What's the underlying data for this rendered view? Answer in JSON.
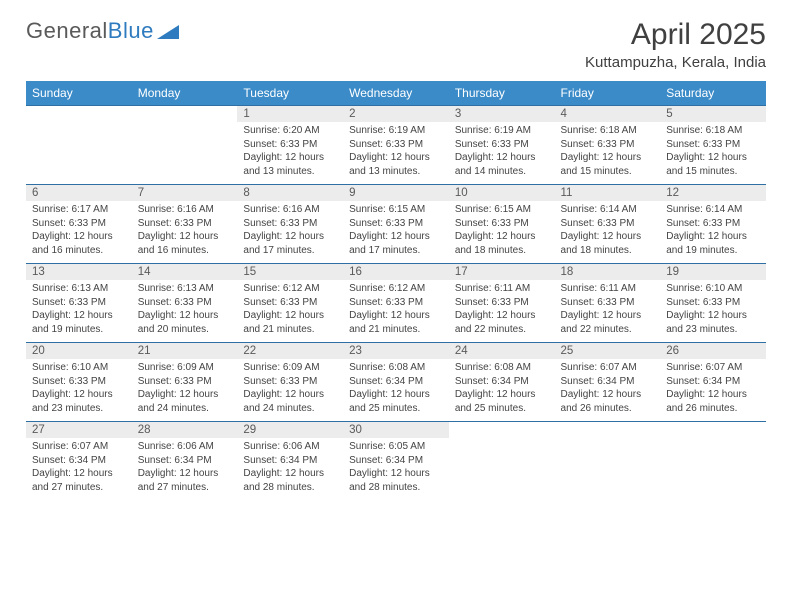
{
  "brand": {
    "part1": "General",
    "part2": "Blue"
  },
  "title": "April 2025",
  "location": "Kuttampuzha, Kerala, India",
  "colors": {
    "header_bg": "#3b8bc8",
    "header_text": "#ffffff",
    "daynum_bg": "#ececec",
    "rule": "#2f6fa3",
    "body_text": "#444444",
    "title_text": "#404040"
  },
  "dow": [
    "Sunday",
    "Monday",
    "Tuesday",
    "Wednesday",
    "Thursday",
    "Friday",
    "Saturday"
  ],
  "weeks": [
    [
      null,
      null,
      {
        "n": "1",
        "sr": "6:20 AM",
        "ss": "6:33 PM",
        "dl": "12 hours and 13 minutes."
      },
      {
        "n": "2",
        "sr": "6:19 AM",
        "ss": "6:33 PM",
        "dl": "12 hours and 13 minutes."
      },
      {
        "n": "3",
        "sr": "6:19 AM",
        "ss": "6:33 PM",
        "dl": "12 hours and 14 minutes."
      },
      {
        "n": "4",
        "sr": "6:18 AM",
        "ss": "6:33 PM",
        "dl": "12 hours and 15 minutes."
      },
      {
        "n": "5",
        "sr": "6:18 AM",
        "ss": "6:33 PM",
        "dl": "12 hours and 15 minutes."
      }
    ],
    [
      {
        "n": "6",
        "sr": "6:17 AM",
        "ss": "6:33 PM",
        "dl": "12 hours and 16 minutes."
      },
      {
        "n": "7",
        "sr": "6:16 AM",
        "ss": "6:33 PM",
        "dl": "12 hours and 16 minutes."
      },
      {
        "n": "8",
        "sr": "6:16 AM",
        "ss": "6:33 PM",
        "dl": "12 hours and 17 minutes."
      },
      {
        "n": "9",
        "sr": "6:15 AM",
        "ss": "6:33 PM",
        "dl": "12 hours and 17 minutes."
      },
      {
        "n": "10",
        "sr": "6:15 AM",
        "ss": "6:33 PM",
        "dl": "12 hours and 18 minutes."
      },
      {
        "n": "11",
        "sr": "6:14 AM",
        "ss": "6:33 PM",
        "dl": "12 hours and 18 minutes."
      },
      {
        "n": "12",
        "sr": "6:14 AM",
        "ss": "6:33 PM",
        "dl": "12 hours and 19 minutes."
      }
    ],
    [
      {
        "n": "13",
        "sr": "6:13 AM",
        "ss": "6:33 PM",
        "dl": "12 hours and 19 minutes."
      },
      {
        "n": "14",
        "sr": "6:13 AM",
        "ss": "6:33 PM",
        "dl": "12 hours and 20 minutes."
      },
      {
        "n": "15",
        "sr": "6:12 AM",
        "ss": "6:33 PM",
        "dl": "12 hours and 21 minutes."
      },
      {
        "n": "16",
        "sr": "6:12 AM",
        "ss": "6:33 PM",
        "dl": "12 hours and 21 minutes."
      },
      {
        "n": "17",
        "sr": "6:11 AM",
        "ss": "6:33 PM",
        "dl": "12 hours and 22 minutes."
      },
      {
        "n": "18",
        "sr": "6:11 AM",
        "ss": "6:33 PM",
        "dl": "12 hours and 22 minutes."
      },
      {
        "n": "19",
        "sr": "6:10 AM",
        "ss": "6:33 PM",
        "dl": "12 hours and 23 minutes."
      }
    ],
    [
      {
        "n": "20",
        "sr": "6:10 AM",
        "ss": "6:33 PM",
        "dl": "12 hours and 23 minutes."
      },
      {
        "n": "21",
        "sr": "6:09 AM",
        "ss": "6:33 PM",
        "dl": "12 hours and 24 minutes."
      },
      {
        "n": "22",
        "sr": "6:09 AM",
        "ss": "6:33 PM",
        "dl": "12 hours and 24 minutes."
      },
      {
        "n": "23",
        "sr": "6:08 AM",
        "ss": "6:34 PM",
        "dl": "12 hours and 25 minutes."
      },
      {
        "n": "24",
        "sr": "6:08 AM",
        "ss": "6:34 PM",
        "dl": "12 hours and 25 minutes."
      },
      {
        "n": "25",
        "sr": "6:07 AM",
        "ss": "6:34 PM",
        "dl": "12 hours and 26 minutes."
      },
      {
        "n": "26",
        "sr": "6:07 AM",
        "ss": "6:34 PM",
        "dl": "12 hours and 26 minutes."
      }
    ],
    [
      {
        "n": "27",
        "sr": "6:07 AM",
        "ss": "6:34 PM",
        "dl": "12 hours and 27 minutes."
      },
      {
        "n": "28",
        "sr": "6:06 AM",
        "ss": "6:34 PM",
        "dl": "12 hours and 27 minutes."
      },
      {
        "n": "29",
        "sr": "6:06 AM",
        "ss": "6:34 PM",
        "dl": "12 hours and 28 minutes."
      },
      {
        "n": "30",
        "sr": "6:05 AM",
        "ss": "6:34 PM",
        "dl": "12 hours and 28 minutes."
      },
      null,
      null,
      null
    ]
  ],
  "labels": {
    "sunrise": "Sunrise:",
    "sunset": "Sunset:",
    "daylight": "Daylight:"
  }
}
